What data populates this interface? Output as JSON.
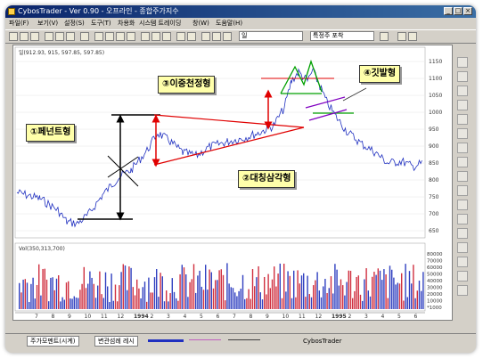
{
  "window": {
    "title": "CybosTrader - Ver 0.90 - 오프라인 - 종합주가지수"
  },
  "menu": [
    "파일(F)",
    "보기(V)",
    "설정(S)",
    "도구(T)",
    "차용화",
    "시스템 트레이딩",
    "창(W)",
    "도움말(H)"
  ],
  "toolbar": {
    "period_select": "일",
    "indicator_select": "특정주 포착"
  },
  "price_panel": {
    "header": "일(912.93, 915, 597.85, 597.85)",
    "y_ticks": [
      "1150",
      "1100",
      "1050",
      "1000",
      "950",
      "900",
      "850",
      "800",
      "750",
      "700",
      "650"
    ]
  },
  "volume_panel": {
    "header": "Vol(350,313,700)",
    "y_ticks": [
      "80000",
      "70000",
      "60000",
      "50000",
      "40000",
      "30000",
      "20000",
      "10000",
      "*1000"
    ]
  },
  "x_axis": {
    "labels": [
      "7",
      "8",
      "9",
      "10",
      "11",
      "12",
      "1994",
      "2",
      "3",
      "4",
      "5",
      "6",
      "7",
      "8",
      "9",
      "10",
      "11",
      "12",
      "1995",
      "2",
      "3",
      "4",
      "5",
      "6"
    ]
  },
  "annotations": {
    "pennant": "①페넌트형",
    "triangle": "②대칭삼각형",
    "double_top": "③이중천정형",
    "flag": "④깃발형"
  },
  "bottom_tabs": [
    "주가모멘트(시계)",
    "변관섬례 레시"
  ],
  "status": {
    "app": "CybosTrader"
  },
  "colors": {
    "title_bar": "#0a246a",
    "callout_bg": "#ffffaa",
    "annotation_red": "#e00000",
    "annotation_green": "#00a000",
    "annotation_purple": "#8000c0"
  }
}
